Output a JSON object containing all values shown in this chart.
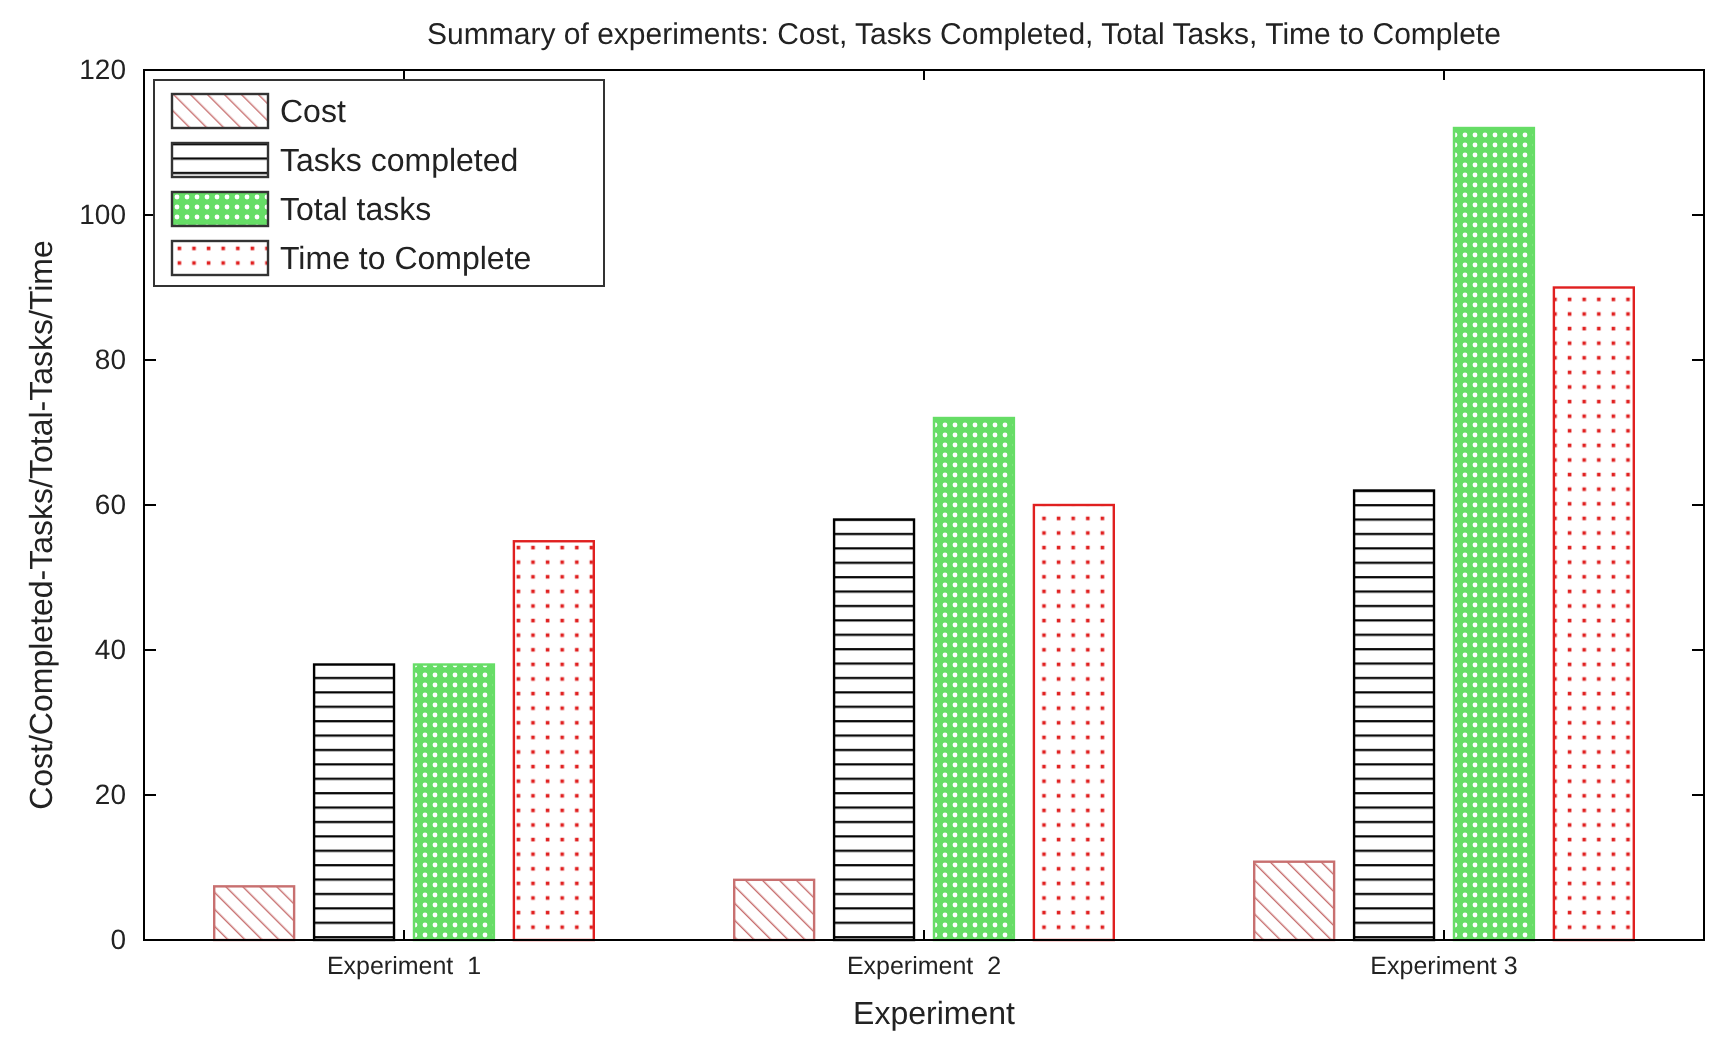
{
  "chart_data": {
    "type": "bar",
    "title": "Summary of experiments: Cost, Tasks Completed, Total Tasks, Time to Complete",
    "xlabel": "Experiment",
    "ylabel": "Cost/Completed-Tasks/Total-Tasks/Time",
    "categories": [
      "Experiment  1",
      "Experiment  2",
      "Experiment 3"
    ],
    "series": [
      {
        "name": "Cost",
        "color": "#c87070",
        "values": [
          7.4,
          8.3,
          10.8
        ]
      },
      {
        "name": "Tasks completed",
        "color": "#000000",
        "values": [
          38,
          58,
          62
        ]
      },
      {
        "name": "Total tasks",
        "color": "#66dd66",
        "values": [
          38,
          72,
          112
        ]
      },
      {
        "name": "Time to Complete",
        "color": "#e02020",
        "values": [
          55,
          60,
          90
        ]
      }
    ],
    "ylim": [
      0,
      120
    ],
    "yticks": [
      0,
      20,
      40,
      60,
      80,
      100,
      120
    ],
    "grid": false,
    "legend": "top left"
  }
}
